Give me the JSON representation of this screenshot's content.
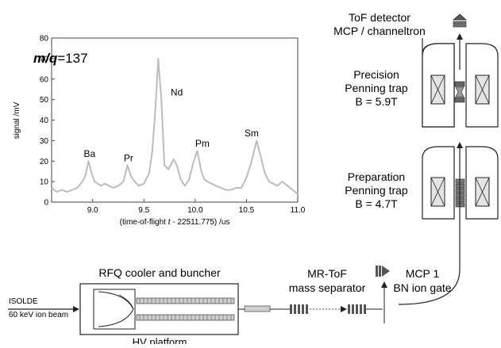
{
  "chart_data": {
    "type": "line",
    "annotation": "m/q=137",
    "annotation_parts": {
      "italic": "m/q",
      "rest": "=137"
    },
    "xlabel": "(time-of-flight t - 22511.775) /us",
    "xlabel_parts": {
      "before": "(time-of-flight ",
      "italic": "t",
      "after": " - 22511.775) /us"
    },
    "ylabel": "signal /mV",
    "xlim": [
      8.6,
      11.0
    ],
    "ylim": [
      0,
      80
    ],
    "x_ticks": [
      "9.0",
      "9.5",
      "10.0",
      "10.5",
      "11.0"
    ],
    "y_ticks": [
      "0",
      "10",
      "20",
      "30",
      "40",
      "50",
      "60",
      "70",
      "80"
    ],
    "series_color": "#bcbcbc",
    "series": [
      {
        "x": [
          8.6,
          8.65,
          8.7,
          8.75,
          8.8,
          8.85,
          8.9,
          8.93,
          8.96,
          8.99,
          9.02,
          9.05,
          9.08,
          9.12,
          9.16,
          9.2,
          9.25,
          9.3,
          9.34,
          9.37,
          9.41,
          9.45,
          9.5,
          9.55,
          9.58,
          9.61,
          9.64,
          9.67,
          9.7,
          9.74,
          9.79,
          9.82,
          9.86,
          9.9,
          9.94,
          9.98,
          10.02,
          10.06,
          10.09,
          10.12,
          10.16,
          10.2,
          10.25,
          10.3,
          10.35,
          10.4,
          10.45,
          10.5,
          10.55,
          10.6,
          10.64,
          10.68,
          10.72,
          10.76,
          10.8,
          10.85,
          10.9,
          10.95,
          11.0
        ],
        "y": [
          7,
          5,
          6,
          5,
          6,
          7,
          10,
          13,
          20,
          14,
          10,
          9,
          8,
          9,
          8,
          7,
          8,
          10,
          18,
          13,
          10,
          8,
          9,
          14,
          24,
          44,
          70,
          50,
          18,
          16,
          21,
          18,
          11,
          8,
          11,
          19,
          25,
          15,
          11,
          10,
          9,
          8,
          7,
          6,
          6,
          7,
          7,
          12,
          20,
          30,
          22,
          14,
          10,
          9,
          8,
          10,
          8,
          6,
          4
        ]
      }
    ],
    "peak_labels": [
      {
        "text": "Ba",
        "x": 8.97,
        "y": 22
      },
      {
        "text": "Pr",
        "x": 9.35,
        "y": 20
      },
      {
        "text": "Nd",
        "x": 9.82,
        "y": 52
      },
      {
        "text": "Pm",
        "x": 10.07,
        "y": 27
      },
      {
        "text": "Sm",
        "x": 10.55,
        "y": 32
      }
    ]
  },
  "diagram": {
    "tof_detector_line1": "ToF detector",
    "tof_detector_line2": "MCP / channeltron",
    "precision_trap_line1": "Precision",
    "precision_trap_line2": "Penning trap",
    "precision_trap_line3": "B = 5.9T",
    "preparation_trap_line1": "Preparation",
    "preparation_trap_line2": "Penning trap",
    "preparation_trap_line3": "B = 4.7T",
    "rfq_label": "RFQ cooler and buncher",
    "hv_platform_label": "HV platform",
    "isolde_line1": "ISOLDE",
    "isolde_line2": "60 keV ion beam",
    "mrtof_line1": "MR-ToF",
    "mrtof_line2": "mass separator",
    "mcp1_label": "MCP 1",
    "bn_gate_label": "BN ion gate"
  }
}
